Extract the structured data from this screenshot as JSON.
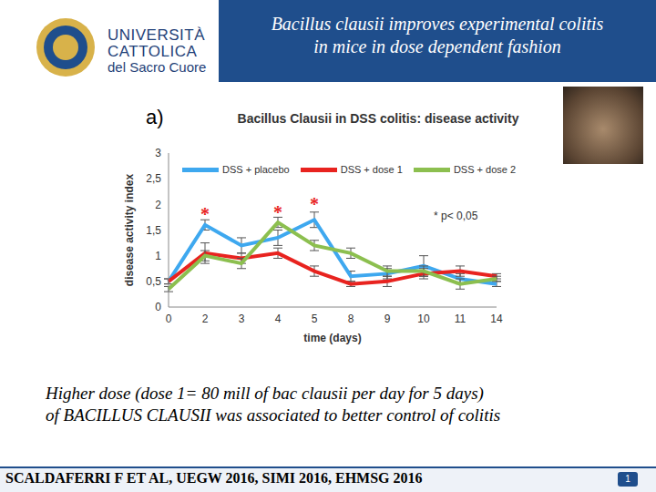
{
  "header": {
    "logo_text": [
      "UNIVERSITÀ",
      "CATTOLICA",
      "del Sacro Cuore"
    ],
    "title": [
      "Bacillus clausii improves experimental colitis",
      "in mice in dose dependent fashion"
    ]
  },
  "panel_label": "a)",
  "chart_data": {
    "type": "line",
    "title": "Bacillus Clausii in DSS colitis: disease activity",
    "x_label": "time (days)",
    "y_label": "disease activity index",
    "categories": [
      "0",
      "2",
      "3",
      "4",
      "5",
      "8",
      "9",
      "10",
      "11",
      "14"
    ],
    "ylim": [
      0,
      3
    ],
    "yticks": [
      0,
      {
        "value": 0.5,
        "label": "0,5"
      },
      1,
      {
        "value": 1.5,
        "label": "1,5"
      },
      2,
      {
        "value": 2.5,
        "label": "2,5"
      },
      3
    ],
    "legend": "top",
    "grid": false,
    "series": [
      {
        "name": "DSS + placebo",
        "color": "#3ea8ef",
        "values": [
          0.5,
          1.6,
          1.2,
          1.35,
          1.7,
          0.6,
          0.65,
          0.8,
          0.55,
          0.45
        ],
        "errors": [
          0.05,
          0.1,
          0.15,
          0.15,
          0.15,
          0.1,
          0.1,
          0.2,
          0.1,
          0.05
        ]
      },
      {
        "name": "DSS + dose 1",
        "color": "#e8231f",
        "values": [
          0.5,
          1.05,
          0.95,
          1.05,
          0.7,
          0.45,
          0.5,
          0.65,
          0.7,
          0.6
        ],
        "errors": [
          0.05,
          0.2,
          0.1,
          0.1,
          0.1,
          0.05,
          0.1,
          0.1,
          0.1,
          0.05
        ]
      },
      {
        "name": "DSS + dose 2",
        "color": "#8cbf4f",
        "values": [
          0.35,
          1.0,
          0.85,
          1.65,
          1.2,
          1.05,
          0.7,
          0.7,
          0.45,
          0.55
        ],
        "errors": [
          0.05,
          0.1,
          0.1,
          0.1,
          0.1,
          0.1,
          0.1,
          0.1,
          0.1,
          0.05
        ]
      }
    ],
    "annotations": [
      {
        "text": "*",
        "category": "2",
        "y": 1.82,
        "color": "#e8231f"
      },
      {
        "text": "*",
        "category": "4",
        "y": 1.85,
        "color": "#e8231f"
      },
      {
        "text": "*",
        "category": "5",
        "y": 2.0,
        "color": "#e8231f"
      }
    ],
    "note": "* p< 0,05"
  },
  "caption": [
    "Higher dose (dose 1= 80 mill of bac clausii per day for 5 days)",
    "of BACILLUS CLAUSII was associated to better control of colitis"
  ],
  "footer": {
    "citation": "SCALDAFERRI F ET AL, UEGW 2016, SIMI 2016, EHMSG 2016",
    "page": "1"
  }
}
